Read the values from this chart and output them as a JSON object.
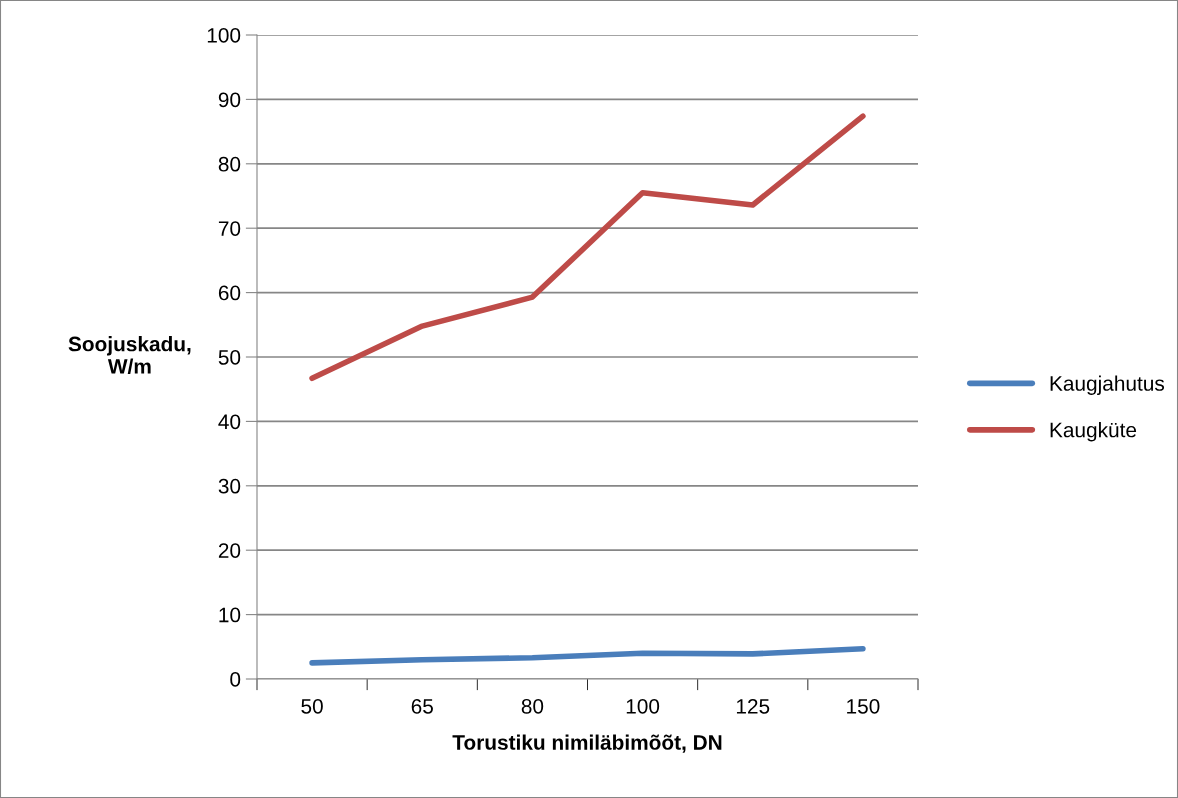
{
  "chart_data": {
    "type": "line",
    "xlabel": "Torustiku nimiläbimõõt, DN",
    "ylabel": "Soojuskadu,\nW/m",
    "categories": [
      "50",
      "65",
      "80",
      "100",
      "125",
      "150"
    ],
    "series": [
      {
        "name": "Kaugjahutus",
        "color": "#4a7ebb",
        "values": [
          2.5,
          3.0,
          3.3,
          4.0,
          3.9,
          4.7
        ]
      },
      {
        "name": "Kaugküte",
        "color": "#be4b48",
        "values": [
          46.7,
          54.8,
          59.3,
          75.5,
          73.6,
          87.4
        ]
      }
    ],
    "ylim": [
      0,
      100
    ],
    "yticks": [
      0,
      10,
      20,
      30,
      40,
      50,
      60,
      70,
      80,
      90,
      100
    ],
    "grid": "y",
    "legend": "right"
  }
}
